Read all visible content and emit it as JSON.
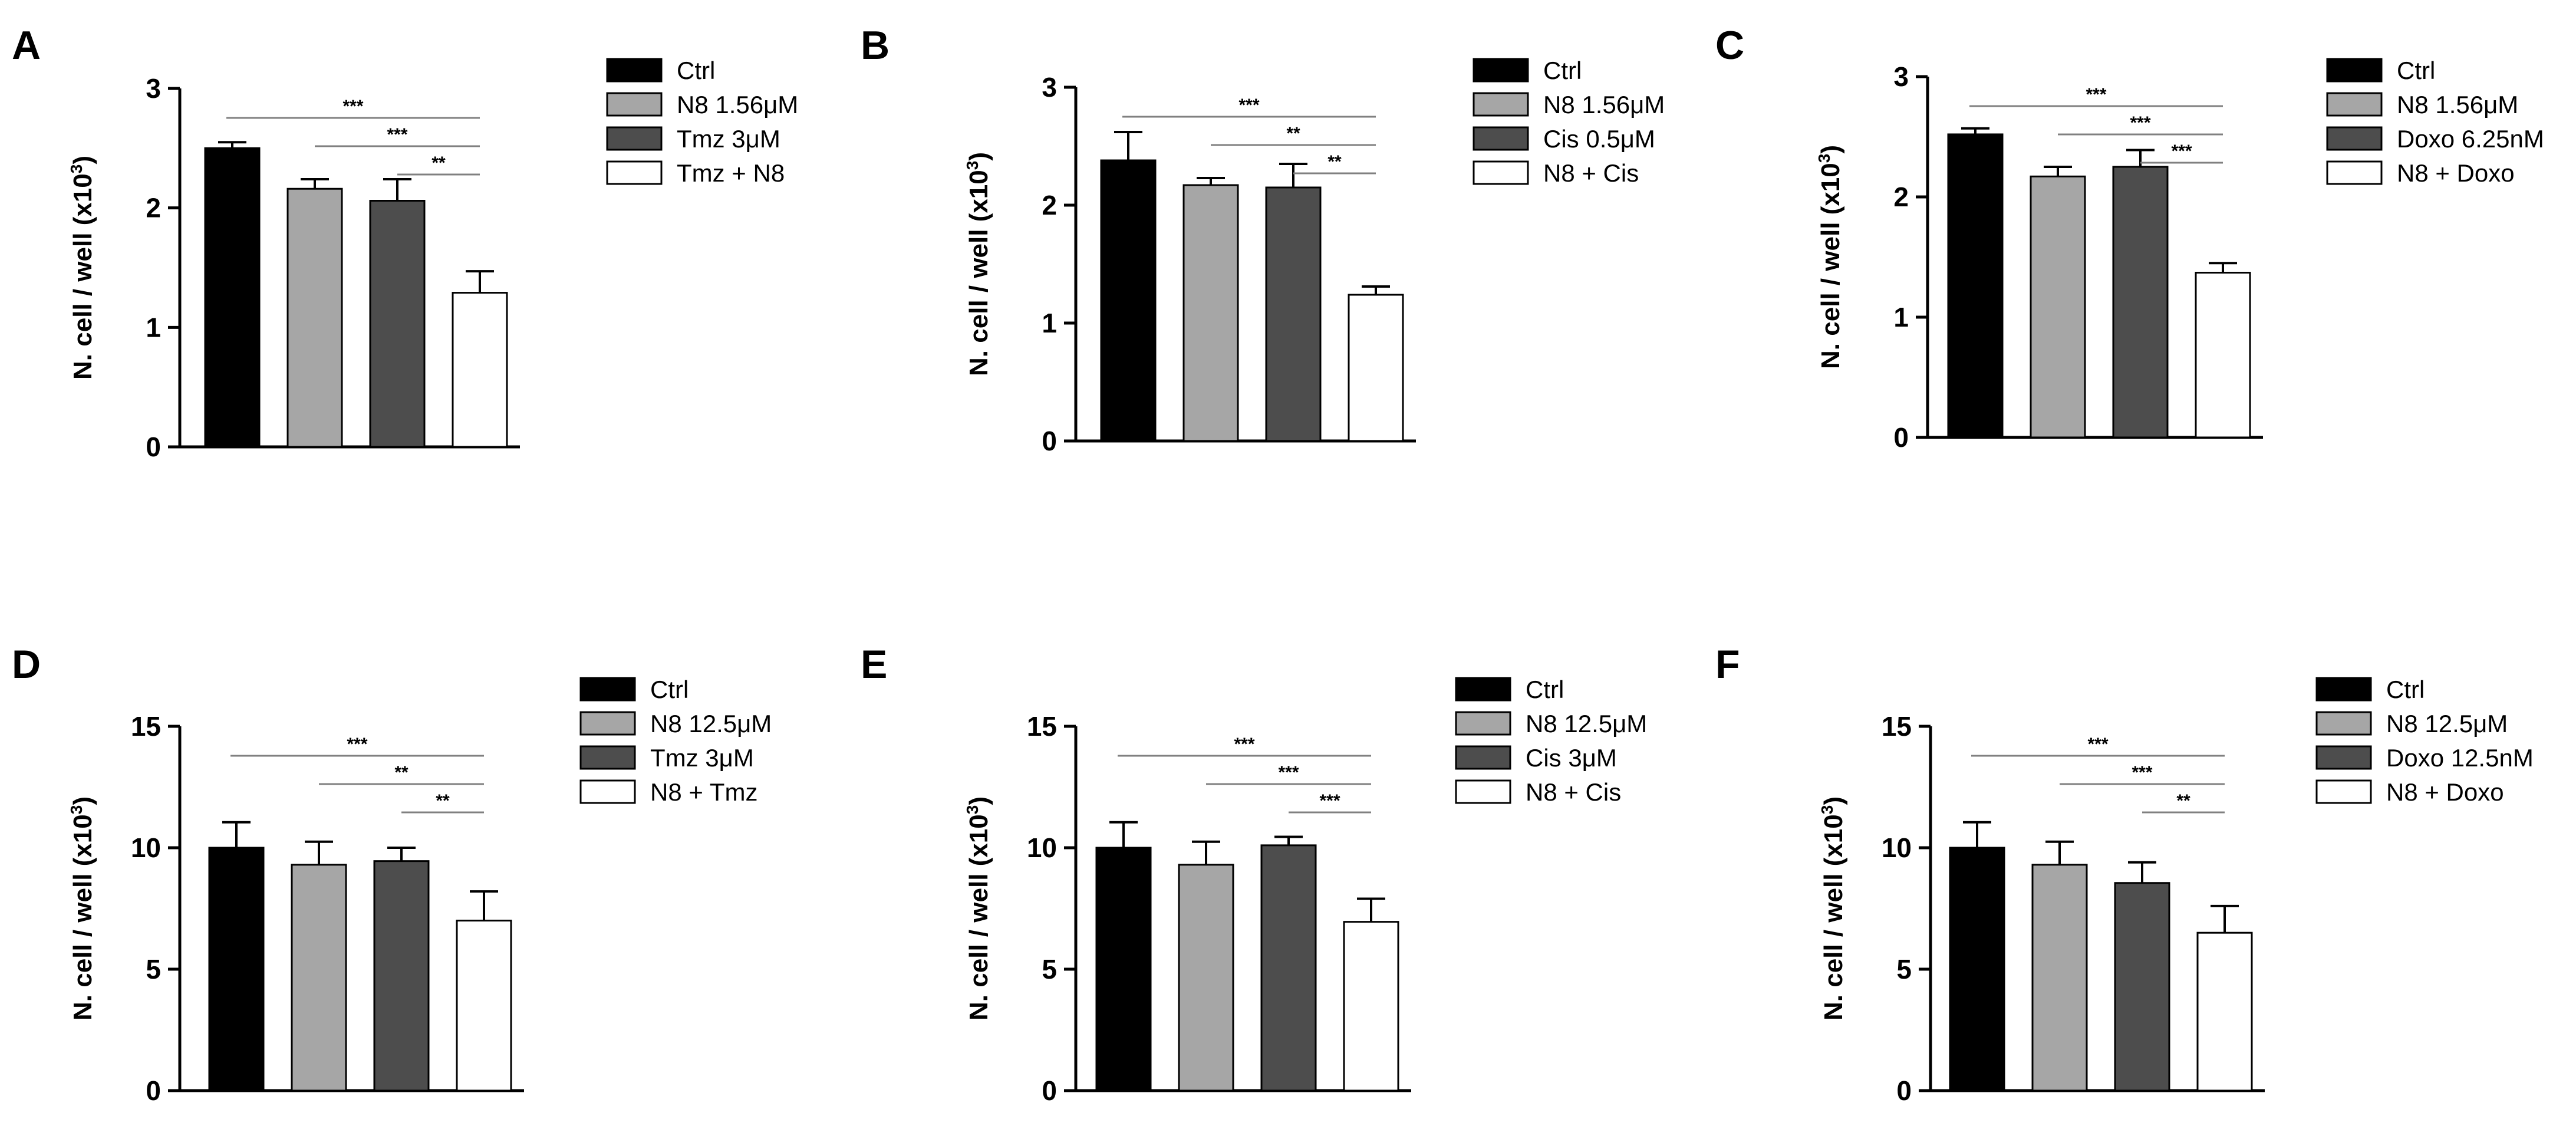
{
  "colors": {
    "ctrl": "#000000",
    "n8": "#a6a6a6",
    "drug": "#4d4d4d",
    "combo": "#ffffff",
    "stroke": "#000000",
    "sig_line": "#808080"
  },
  "chart_data": [
    {
      "type": "bar",
      "panel": "A",
      "ylabel": "N. cell / well (x10",
      "ylabel_sup": "3",
      "ylabel_close": ")",
      "ylim": [
        0,
        3
      ],
      "yticks": [
        0,
        1,
        2,
        3
      ],
      "legend": [
        "Ctrl",
        "N8 1.56μM",
        "Tmz 3μM",
        "Tmz + N8"
      ],
      "values": [
        2.5,
        2.16,
        2.06,
        1.29
      ],
      "errors": [
        0.05,
        0.08,
        0.18,
        0.18
      ],
      "significance": [
        {
          "from": 0,
          "to": 3,
          "label": "***"
        },
        {
          "from": 1,
          "to": 3,
          "label": "***"
        },
        {
          "from": 2,
          "to": 3,
          "label": "**"
        }
      ]
    },
    {
      "type": "bar",
      "panel": "B",
      "ylabel": "N. cell / well (x10",
      "ylabel_sup": "3",
      "ylabel_close": ")",
      "ylim": [
        0,
        3
      ],
      "yticks": [
        0,
        1,
        2,
        3
      ],
      "legend": [
        "Ctrl",
        "N8 1.56μM",
        "Cis 0.5μM",
        "N8 + Cis"
      ],
      "values": [
        2.38,
        2.17,
        2.15,
        1.24
      ],
      "errors": [
        0.24,
        0.06,
        0.2,
        0.07
      ],
      "significance": [
        {
          "from": 0,
          "to": 3,
          "label": "***"
        },
        {
          "from": 1,
          "to": 3,
          "label": "**"
        },
        {
          "from": 2,
          "to": 3,
          "label": "**"
        }
      ]
    },
    {
      "type": "bar",
      "panel": "C",
      "ylabel": "N. cell / well (x10",
      "ylabel_sup": "3",
      "ylabel_close": ")",
      "ylim": [
        0,
        3
      ],
      "yticks": [
        0,
        1,
        2,
        3
      ],
      "legend": [
        "Ctrl",
        "N8 1.56μM",
        "Doxo 6.25nM",
        "N8 + Doxo"
      ],
      "values": [
        2.52,
        2.17,
        2.25,
        1.37
      ],
      "errors": [
        0.05,
        0.08,
        0.14,
        0.08
      ],
      "significance": [
        {
          "from": 0,
          "to": 3,
          "label": "***"
        },
        {
          "from": 1,
          "to": 3,
          "label": "***"
        },
        {
          "from": 2,
          "to": 3,
          "label": "***"
        }
      ]
    },
    {
      "type": "bar",
      "panel": "D",
      "ylabel": "N. cell / well (x10",
      "ylabel_sup": "3",
      "ylabel_close": ")",
      "ylim": [
        0,
        15
      ],
      "yticks": [
        0,
        5,
        10,
        15
      ],
      "legend": [
        "Ctrl",
        "N8 12.5μM",
        "Tmz 3μM",
        "N8 + Tmz"
      ],
      "values": [
        10.0,
        9.3,
        9.45,
        7.0
      ],
      "errors": [
        1.05,
        0.95,
        0.55,
        1.2
      ],
      "significance": [
        {
          "from": 0,
          "to": 3,
          "label": "***"
        },
        {
          "from": 1,
          "to": 3,
          "label": "**"
        },
        {
          "from": 2,
          "to": 3,
          "label": "**"
        }
      ]
    },
    {
      "type": "bar",
      "panel": "E",
      "ylabel": "N. cell / well (x10",
      "ylabel_sup": "3",
      "ylabel_close": ")",
      "ylim": [
        0,
        15
      ],
      "yticks": [
        0,
        5,
        10,
        15
      ],
      "legend": [
        "Ctrl",
        "N8 12.5μM",
        "Cis 3μM",
        "N8 + Cis"
      ],
      "values": [
        10.0,
        9.3,
        10.1,
        6.95
      ],
      "errors": [
        1.05,
        0.95,
        0.35,
        0.95
      ],
      "significance": [
        {
          "from": 0,
          "to": 3,
          "label": "***"
        },
        {
          "from": 1,
          "to": 3,
          "label": "***"
        },
        {
          "from": 2,
          "to": 3,
          "label": "***"
        }
      ]
    },
    {
      "type": "bar",
      "panel": "F",
      "ylabel": "N. cell / well (x10",
      "ylabel_sup": "3",
      "ylabel_close": ")",
      "ylim": [
        0,
        15
      ],
      "yticks": [
        0,
        5,
        10,
        15
      ],
      "legend": [
        "Ctrl",
        "N8 12.5μM",
        "Doxo 12.5nM",
        "N8 + Doxo"
      ],
      "values": [
        10.0,
        9.3,
        8.55,
        6.5
      ],
      "errors": [
        1.05,
        0.95,
        0.85,
        1.1
      ],
      "significance": [
        {
          "from": 0,
          "to": 3,
          "label": "***"
        },
        {
          "from": 1,
          "to": 3,
          "label": "***"
        },
        {
          "from": 2,
          "to": 3,
          "label": "**"
        }
      ]
    }
  ]
}
